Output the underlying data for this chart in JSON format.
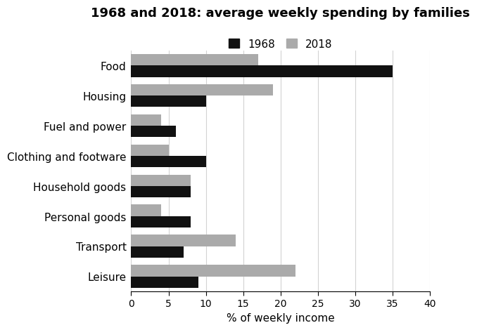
{
  "title": "1968 and 2018: average weekly spending by families",
  "categories": [
    "Food",
    "Housing",
    "Fuel and power",
    "Clothing and footware",
    "Household goods",
    "Personal goods",
    "Transport",
    "Leisure"
  ],
  "values_1968": [
    35,
    10,
    6,
    10,
    8,
    8,
    7,
    9
  ],
  "values_2018": [
    17,
    19,
    4,
    5,
    8,
    4,
    14,
    22
  ],
  "color_1968": "#111111",
  "color_2018": "#aaaaaa",
  "xlabel": "% of weekly income",
  "xlim": [
    0,
    40
  ],
  "xticks": [
    0,
    5,
    10,
    15,
    20,
    25,
    30,
    35,
    40
  ],
  "legend_labels": [
    "1968",
    "2018"
  ],
  "bar_height": 0.38,
  "title_fontsize": 13,
  "label_fontsize": 11,
  "tick_fontsize": 10
}
